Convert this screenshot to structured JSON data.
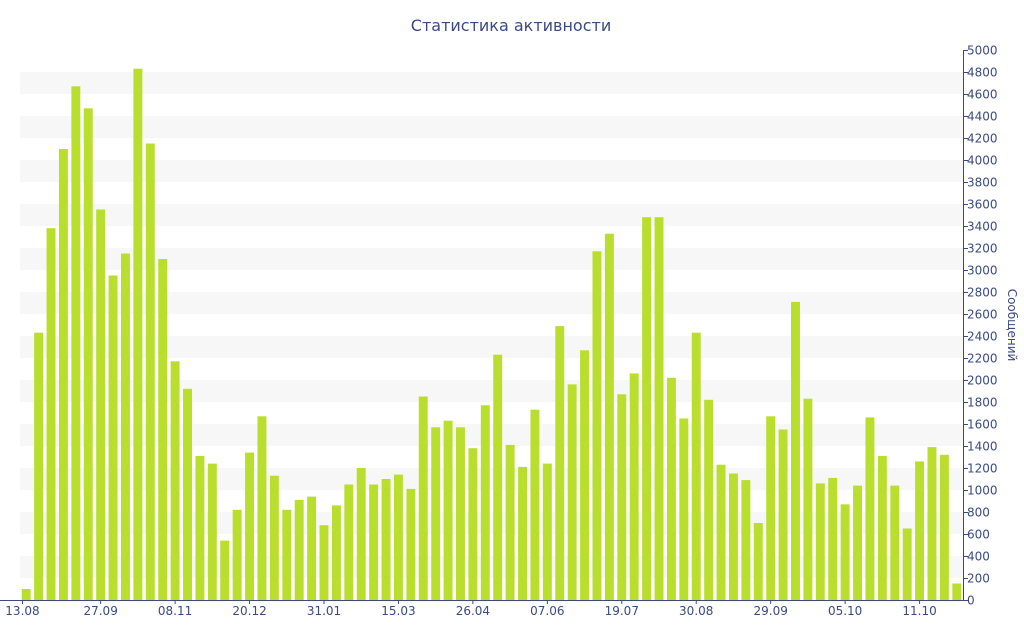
{
  "chart_data": {
    "type": "bar",
    "title": "Статистика активности",
    "xlabel": "",
    "ylabel": "Сообщений",
    "ylim": [
      0,
      5000
    ],
    "ytick_step": 200,
    "bar_color": "#bade2e",
    "band_color": "#f7f7f7",
    "text_color": "#3a4a84",
    "axis_position": "right",
    "grid": "alternating horizontal bands",
    "x_tick_labels": [
      {
        "label": "13.08",
        "at": 0
      },
      {
        "label": "27.09",
        "at": 6.5
      },
      {
        "label": "08.11",
        "at": 12.5
      },
      {
        "label": "20.12",
        "at": 18.5
      },
      {
        "label": "31.01",
        "at": 24.5
      },
      {
        "label": "15.03",
        "at": 30.5
      },
      {
        "label": "26.04",
        "at": 36.5
      },
      {
        "label": "07.06",
        "at": 42.5
      },
      {
        "label": "19.07",
        "at": 48.5
      },
      {
        "label": "30.08",
        "at": 54.5
      },
      {
        "label": "29.09",
        "at": 60.5
      },
      {
        "label": "05.10",
        "at": 66.5
      },
      {
        "label": "11.10",
        "at": 72.5
      }
    ],
    "values": [
      100,
      2430,
      3380,
      4100,
      4670,
      4470,
      3550,
      2950,
      3150,
      4830,
      4150,
      3100,
      2170,
      1920,
      1310,
      1240,
      540,
      820,
      1340,
      1670,
      1130,
      820,
      910,
      940,
      680,
      860,
      1050,
      1200,
      1050,
      1100,
      1140,
      1010,
      1850,
      1570,
      1630,
      1570,
      1380,
      1770,
      2230,
      1410,
      1210,
      1730,
      1240,
      2490,
      1960,
      2270,
      3170,
      3330,
      1870,
      2060,
      3480,
      3480,
      2020,
      1650,
      2430,
      1820,
      1230,
      1150,
      1090,
      700,
      1670,
      1550,
      2710,
      1830,
      1060,
      1110,
      870,
      1040,
      1660,
      1310,
      1040,
      650,
      1260,
      1390,
      1320,
      150
    ]
  }
}
